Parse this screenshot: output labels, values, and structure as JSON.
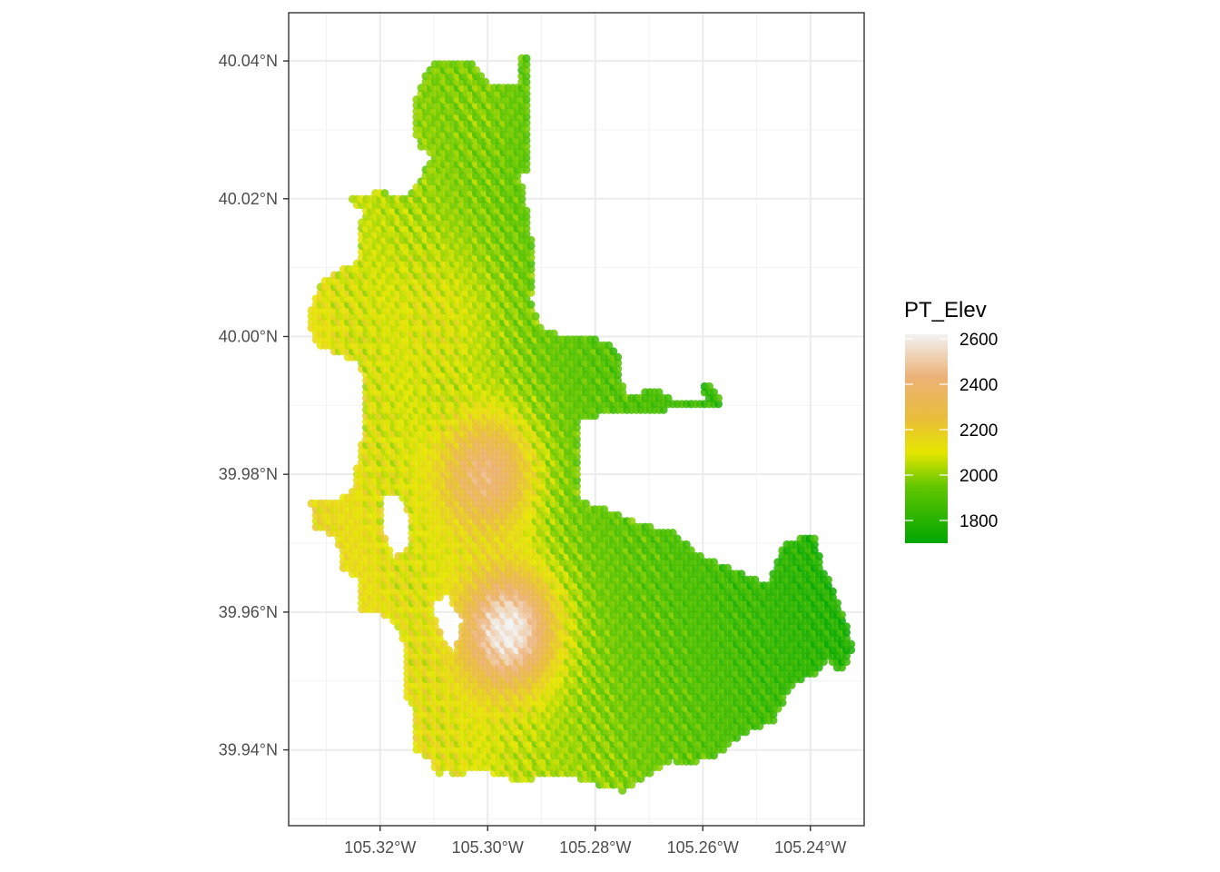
{
  "chart_data": {
    "type": "scatter",
    "subtype": "spatial point map colored by elevation",
    "title": "",
    "xlabel": "",
    "ylabel": "",
    "x_units": "degrees longitude (negative = W)",
    "y_units": "degrees latitude (N)",
    "xlim": [
      -105.337,
      -105.23
    ],
    "ylim": [
      39.929,
      40.047
    ],
    "grid": true,
    "x_ticks": [
      {
        "value": -105.32,
        "label": "105.32°W"
      },
      {
        "value": -105.3,
        "label": "105.30°W"
      },
      {
        "value": -105.28,
        "label": "105.28°W"
      },
      {
        "value": -105.26,
        "label": "105.26°W"
      },
      {
        "value": -105.24,
        "label": "105.24°W"
      }
    ],
    "y_ticks": [
      {
        "value": 40.04,
        "label": "40.04°N"
      },
      {
        "value": 40.02,
        "label": "40.02°N"
      },
      {
        "value": 40.0,
        "label": "40.00°N"
      },
      {
        "value": 39.98,
        "label": "39.98°N"
      },
      {
        "value": 39.96,
        "label": "39.96°N"
      },
      {
        "value": 39.94,
        "label": "39.94°N"
      }
    ],
    "color_variable": "PT_Elev",
    "legend": {
      "title": "PT_Elev",
      "position": "right",
      "range": [
        1700,
        2620
      ],
      "breaks": [
        2600,
        2400,
        2200,
        2000,
        1800
      ],
      "colors": [
        {
          "value": 1700,
          "color": "#00a600"
        },
        {
          "value": 1950,
          "color": "#63c600"
        },
        {
          "value": 2100,
          "color": "#e6e600"
        },
        {
          "value": 2250,
          "color": "#e9bd3a"
        },
        {
          "value": 2430,
          "color": "#ecb176"
        },
        {
          "value": 2620,
          "color": "#f2f2f2"
        }
      ]
    },
    "region_outline": [
      [
        -105.3105,
        40.0395
      ],
      [
        -105.303,
        40.0395
      ],
      [
        -105.3,
        40.0365
      ],
      [
        -105.2945,
        40.0365
      ],
      [
        -105.2945,
        40.041
      ],
      [
        -105.292,
        40.041
      ],
      [
        -105.292,
        40.0245
      ],
      [
        -105.294,
        40.0235
      ],
      [
        -105.292,
        40.015
      ],
      [
        -105.2915,
        40.0112
      ],
      [
        -105.292,
        40.005
      ],
      [
        -105.2895,
        40.0005
      ],
      [
        -105.282,
        40.0002
      ],
      [
        -105.276,
        39.9985
      ],
      [
        -105.2745,
        39.991
      ],
      [
        -105.271,
        39.992
      ],
      [
        -105.268,
        39.992
      ],
      [
        -105.2645,
        39.9905
      ],
      [
        -105.26,
        39.9905
      ],
      [
        -105.2595,
        39.991
      ],
      [
        -105.26,
        39.993
      ],
      [
        -105.2575,
        39.9925
      ],
      [
        -105.256,
        39.9895
      ],
      [
        -105.262,
        39.9895
      ],
      [
        -105.271,
        39.9892
      ],
      [
        -105.276,
        39.989
      ],
      [
        -105.279,
        39.9887
      ],
      [
        -105.281,
        39.988
      ],
      [
        -105.283,
        39.988
      ],
      [
        -105.283,
        39.9845
      ],
      [
        -105.2828,
        39.976
      ],
      [
        -105.278,
        39.975
      ],
      [
        -105.271,
        39.9725
      ],
      [
        -105.266,
        39.972
      ],
      [
        -105.26,
        39.968
      ],
      [
        -105.254,
        39.966
      ],
      [
        -105.248,
        39.964
      ],
      [
        -105.245,
        39.97
      ],
      [
        -105.239,
        39.9715
      ],
      [
        -105.238,
        39.967
      ],
      [
        -105.234,
        39.96
      ],
      [
        -105.232,
        39.955
      ],
      [
        -105.234,
        39.951
      ],
      [
        -105.237,
        39.9535
      ],
      [
        -105.239,
        39.9505
      ],
      [
        -105.243,
        39.95
      ],
      [
        -105.247,
        39.944
      ],
      [
        -105.253,
        39.942
      ],
      [
        -105.258,
        39.939
      ],
      [
        -105.262,
        39.938
      ],
      [
        -105.266,
        39.9385
      ],
      [
        -105.27,
        39.9365
      ],
      [
        -105.275,
        39.934
      ],
      [
        -105.28,
        39.935
      ],
      [
        -105.284,
        39.936
      ],
      [
        -105.286,
        39.936
      ],
      [
        -105.29,
        39.936
      ],
      [
        -105.294,
        39.9355
      ],
      [
        -105.299,
        39.9365
      ],
      [
        -105.302,
        39.9375
      ],
      [
        -105.306,
        39.936
      ],
      [
        -105.307,
        39.9375
      ],
      [
        -105.309,
        39.936
      ],
      [
        -105.311,
        39.939
      ],
      [
        -105.314,
        39.9395
      ],
      [
        -105.3135,
        39.946
      ],
      [
        -105.315,
        39.947
      ],
      [
        -105.315,
        39.954
      ],
      [
        -105.317,
        39.958
      ],
      [
        -105.32,
        39.96
      ],
      [
        -105.324,
        39.9605
      ],
      [
        -105.324,
        39.965
      ],
      [
        -105.327,
        39.966
      ],
      [
        -105.328,
        39.971
      ],
      [
        -105.332,
        39.972
      ],
      [
        -105.333,
        39.976
      ],
      [
        -105.329,
        39.976
      ],
      [
        -105.325,
        39.9775
      ],
      [
        -105.324,
        39.982
      ],
      [
        -105.323,
        39.986
      ],
      [
        -105.323,
        39.991
      ],
      [
        -105.3235,
        39.996
      ],
      [
        -105.329,
        39.998
      ],
      [
        -105.332,
        39.999
      ],
      [
        -105.3335,
        40.003
      ],
      [
        -105.331,
        40.008
      ],
      [
        -105.328,
        40.0095
      ],
      [
        -105.324,
        40.011
      ],
      [
        -105.324,
        40.015
      ],
      [
        -105.323,
        40.018
      ],
      [
        -105.326,
        40.02
      ],
      [
        -105.32,
        40.021
      ],
      [
        -105.315,
        40.02
      ],
      [
        -105.31,
        40.026
      ],
      [
        -105.313,
        40.028
      ],
      [
        -105.314,
        40.031
      ],
      [
        -105.313,
        40.036
      ]
    ],
    "holes": [
      [
        [
          -105.3195,
          39.9775
        ],
        [
          -105.316,
          39.9765
        ],
        [
          -105.314,
          39.973
        ],
        [
          -105.315,
          39.969
        ],
        [
          -105.3175,
          39.968
        ],
        [
          -105.319,
          39.9705
        ],
        [
          -105.32,
          39.9745
        ]
      ],
      [
        [
          -105.3105,
          39.961
        ],
        [
          -105.3085,
          39.956
        ],
        [
          -105.306,
          39.954
        ],
        [
          -105.3045,
          39.959
        ],
        [
          -105.3075,
          39.9625
        ]
      ]
    ],
    "elevation_peaks": [
      {
        "lon": -105.296,
        "lat": 39.9575,
        "elev": 2620,
        "sigma_deg": 0.006
      },
      {
        "lon": -105.3,
        "lat": 39.98,
        "elev": 2420,
        "sigma_deg": 0.006
      },
      {
        "lon": -105.31,
        "lat": 40.002,
        "elev": 2100,
        "sigma_deg": 0.008
      },
      {
        "lon": -105.302,
        "lat": 40.033,
        "elev": 1980,
        "sigma_deg": 0.006
      }
    ]
  }
}
